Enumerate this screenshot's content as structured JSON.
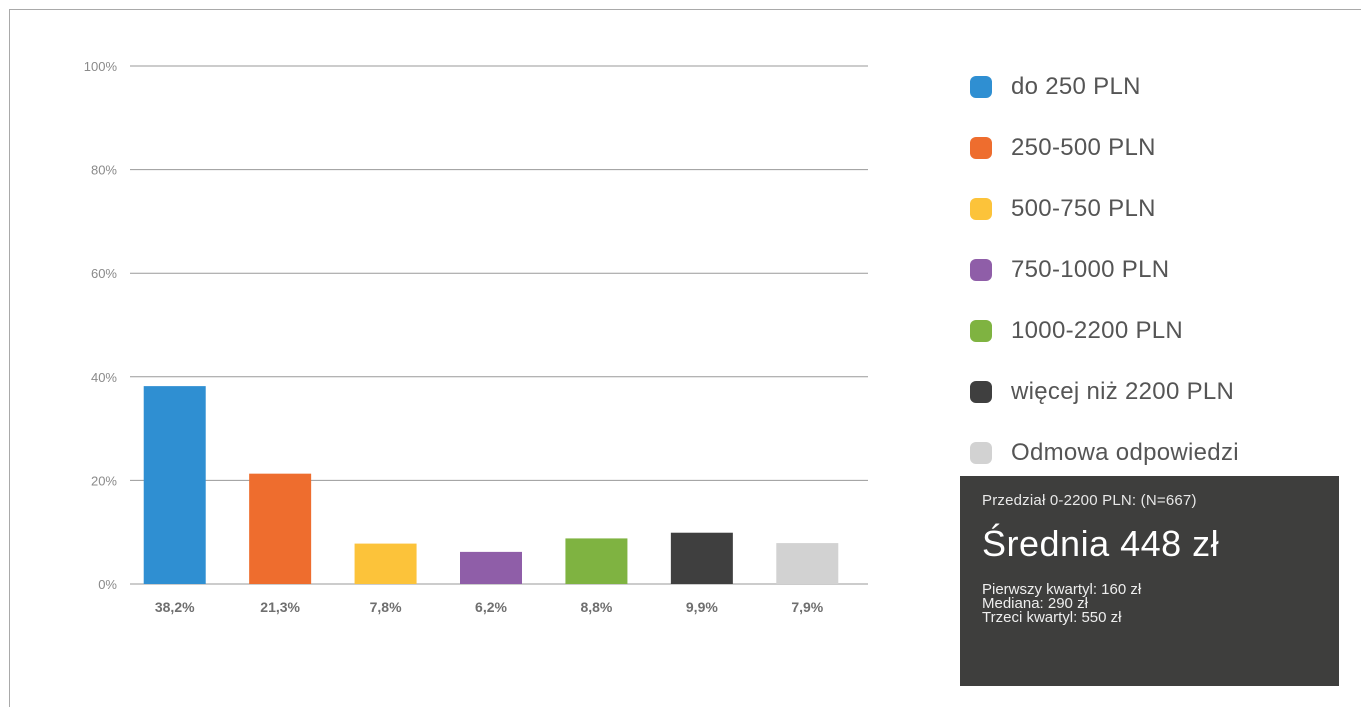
{
  "chart_data": {
    "type": "bar",
    "categories": [
      "do 250 PLN",
      "250-500 PLN",
      "500-750 PLN",
      "750-1000 PLN",
      "1000-2200 PLN",
      "więcej niż 2200 PLN",
      "Odmowa odpowiedzi"
    ],
    "values": [
      38.2,
      21.3,
      7.8,
      6.2,
      8.8,
      9.9,
      7.9
    ],
    "value_labels": [
      "38,2%",
      "21,3%",
      "7,8%",
      "6,2%",
      "8,8%",
      "9,9%",
      "7,9%"
    ],
    "colors": [
      "#2f8fd2",
      "#ee6d2e",
      "#fcc33a",
      "#8f5ea8",
      "#7fb341",
      "#3f3f3f",
      "#d2d2d2"
    ],
    "ylim": [
      0,
      100
    ],
    "yticks": [
      0,
      20,
      40,
      60,
      80,
      100
    ],
    "ytick_labels": [
      "0%",
      "20%",
      "40%",
      "60%",
      "80%",
      "100%"
    ],
    "grid": true,
    "legend_position": "right",
    "title": "",
    "xlabel": "",
    "ylabel": ""
  },
  "summary": {
    "range_label": "Przedział 0-2200 PLN: (N=667)",
    "mean_label": "Średnia 448 zł",
    "lines": [
      "Pierwszy kwartyl: 160 zł",
      "Mediana: 290 zł",
      "Trzeci kwartyl: 550 zł"
    ]
  }
}
